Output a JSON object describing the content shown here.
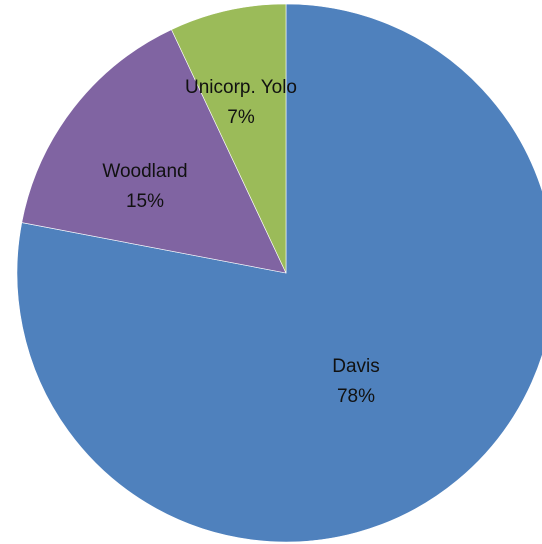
{
  "chart_data": {
    "type": "pie",
    "start_angle_deg": 0,
    "direction": "clockwise",
    "slices": [
      {
        "name": "Davis",
        "value": 78,
        "value_label": "78%",
        "color": "#4F81BD"
      },
      {
        "name": "Woodland",
        "value": 15,
        "value_label": "15%",
        "color": "#8064A2"
      },
      {
        "name": "Unicorp. Yolo",
        "value": 7,
        "value_label": "7%",
        "color": "#9BBB59"
      }
    ],
    "legend": "none",
    "data_labels": "inside, category name and percentage"
  }
}
